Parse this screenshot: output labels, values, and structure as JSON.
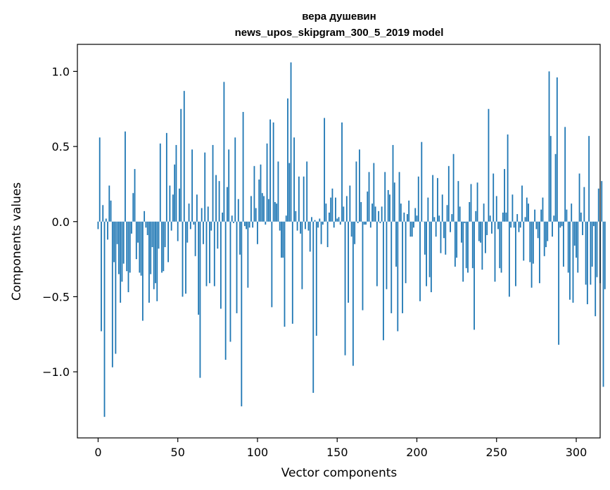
{
  "chart_data": {
    "type": "bar",
    "title_line1": "вера душевин",
    "title_line2": "news_upos_skipgram_300_5_2019 model",
    "xlabel": "Vector components",
    "ylabel": "Components values",
    "xlim": [
      -13,
      315
    ],
    "ylim": [
      -1.44,
      1.18
    ],
    "xticks": [
      0,
      50,
      100,
      150,
      200,
      250,
      300
    ],
    "xtick_labels": [
      "0",
      "50",
      "100",
      "150",
      "200",
      "250",
      "300"
    ],
    "yticks": [
      -1.0,
      -0.5,
      0.0,
      0.5,
      1.0
    ],
    "ytick_labels": [
      "−1.0",
      "−0.5",
      "0.0",
      "0.5",
      "1.0"
    ],
    "bar_color": "#1f77b4",
    "values": [
      -0.05,
      0.56,
      -0.73,
      0.11,
      -1.3,
      0.02,
      -0.12,
      0.24,
      0.14,
      -0.97,
      -0.27,
      -0.88,
      -0.15,
      -0.35,
      -0.54,
      -0.4,
      -0.28,
      0.6,
      -0.33,
      -0.47,
      -0.34,
      -0.08,
      0.19,
      0.35,
      -0.25,
      -0.14,
      -0.34,
      -0.36,
      -0.66,
      0.07,
      -0.04,
      -0.09,
      -0.54,
      -0.35,
      -0.17,
      -0.45,
      -0.41,
      -0.53,
      -0.18,
      0.52,
      -0.34,
      -0.33,
      -0.17,
      0.59,
      -0.27,
      0.24,
      -0.06,
      0.18,
      0.38,
      0.51,
      -0.13,
      0.22,
      0.75,
      -0.5,
      0.87,
      -0.48,
      -0.14,
      0.12,
      -0.05,
      0.48,
      -0.02,
      -0.23,
      0.18,
      -0.62,
      -1.04,
      0.09,
      -0.15,
      0.46,
      -0.43,
      0.1,
      -0.41,
      -0.06,
      0.51,
      -0.43,
      0.31,
      -0.18,
      0.27,
      -0.58,
      0.06,
      0.93,
      -0.92,
      0.23,
      0.48,
      -0.8,
      0.04,
      -0.01,
      0.56,
      -0.61,
      0.15,
      -0.22,
      -1.23,
      0.73,
      -0.03,
      -0.05,
      -0.44,
      -0.04,
      0.17,
      -0.04,
      0.37,
      0.09,
      -0.15,
      0.28,
      0.38,
      0.19,
      0.17,
      -0.02,
      0.52,
      0.15,
      0.68,
      -0.57,
      0.66,
      0.13,
      0.12,
      0.4,
      -0.06,
      -0.24,
      -0.24,
      -0.7,
      0.04,
      0.82,
      0.39,
      1.06,
      -0.68,
      0.56,
      0.07,
      -0.06,
      0.3,
      -0.08,
      -0.45,
      0.3,
      -0.05,
      0.4,
      -0.06,
      -0.2,
      0.03,
      -1.14,
      0.01,
      -0.76,
      -0.04,
      0.02,
      -0.15,
      -0.02,
      0.69,
      0.12,
      -0.17,
      0.06,
      0.16,
      0.22,
      -0.04,
      0.16,
      0.02,
      0.03,
      -0.02,
      0.66,
      0.1,
      -0.89,
      0.17,
      -0.54,
      0.24,
      -0.1,
      -0.96,
      -0.15,
      0.4,
      -0.01,
      0.48,
      0.13,
      -0.59,
      -0.02,
      -0.02,
      0.2,
      0.33,
      -0.04,
      0.12,
      0.39,
      0.1,
      -0.43,
      0.07,
      -0.01,
      0.1,
      -0.79,
      0.33,
      -0.45,
      0.21,
      0.18,
      -0.61,
      0.51,
      0.26,
      -0.3,
      -0.73,
      0.33,
      0.12,
      -0.61,
      0.06,
      -0.41,
      0.05,
      0.14,
      -0.1,
      -0.1,
      -0.04,
      0.09,
      0.04,
      0.3,
      -0.53,
      0.53,
      0.0,
      -0.22,
      -0.43,
      0.16,
      -0.37,
      -0.47,
      0.31,
      0.03,
      -0.1,
      0.29,
      0.04,
      -0.21,
      0.18,
      -0.11,
      -0.22,
      0.11,
      0.37,
      -0.07,
      0.05,
      0.45,
      -0.3,
      -0.24,
      0.27,
      0.1,
      -0.14,
      -0.4,
      -0.01,
      -0.31,
      -0.34,
      0.13,
      0.25,
      -0.31,
      -0.72,
      0.07,
      0.26,
      -0.13,
      -0.14,
      -0.32,
      0.12,
      -0.21,
      -0.09,
      0.75,
      0.04,
      -0.08,
      0.32,
      -0.4,
      0.17,
      -0.05,
      -0.31,
      -0.34,
      0.06,
      0.35,
      0.06,
      0.58,
      -0.5,
      -0.04,
      0.18,
      -0.04,
      -0.43,
      0.05,
      -0.07,
      -0.04,
      0.24,
      -0.26,
      0.03,
      0.16,
      0.12,
      -0.27,
      -0.44,
      -0.28,
      0.08,
      -0.05,
      -0.11,
      -0.41,
      0.08,
      0.16,
      -0.23,
      -0.17,
      -0.13,
      1.0,
      0.57,
      -0.1,
      0.04,
      0.45,
      0.96,
      -0.82,
      -0.04,
      -0.03,
      -0.3,
      0.63,
      0.08,
      -0.34,
      -0.52,
      0.12,
      -0.54,
      -0.16,
      -0.24,
      -0.34,
      0.32,
      0.06,
      -0.09,
      0.23,
      -0.42,
      -0.55,
      0.57,
      -0.42,
      -0.3,
      -0.03,
      -0.63,
      -0.37,
      0.22,
      -0.41,
      0.27,
      -1.1,
      -0.45
    ]
  }
}
